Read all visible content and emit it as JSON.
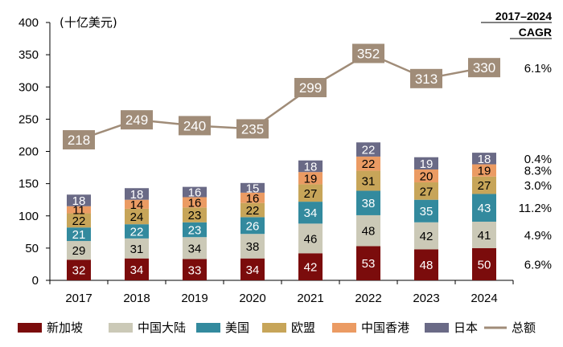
{
  "chart_data": {
    "type": "bar",
    "stacked": true,
    "unit_label": "(十亿美元)",
    "categories": [
      "2017",
      "2018",
      "2019",
      "2020",
      "2021",
      "2022",
      "2023",
      "2024"
    ],
    "ylim": [
      0,
      400
    ],
    "yticks": [
      "0",
      "50",
      "100",
      "150",
      "200",
      "250",
      "300",
      "350",
      "400"
    ],
    "series": [
      {
        "name": "新加坡",
        "color": "#7b0c0c",
        "text_color": "#ffffff",
        "values": [
          32,
          34,
          33,
          34,
          42,
          53,
          48,
          50
        ],
        "cagr": "6.9%"
      },
      {
        "name": "中国大陆",
        "color": "#cbc9b7",
        "text_color": "#000000",
        "values": [
          29,
          31,
          34,
          38,
          46,
          48,
          42,
          41
        ],
        "cagr": "4.9%"
      },
      {
        "name": "美国",
        "color": "#338a9e",
        "text_color": "#ffffff",
        "values": [
          21,
          22,
          23,
          26,
          34,
          38,
          35,
          43
        ],
        "cagr": "11.2%"
      },
      {
        "name": "欧盟",
        "color": "#c7a559",
        "text_color": "#000000",
        "values": [
          22,
          24,
          23,
          22,
          27,
          31,
          27,
          27
        ],
        "cagr": "3.0%"
      },
      {
        "name": "中国香港",
        "color": "#eb9b63",
        "text_color": "#000000",
        "values": [
          11,
          14,
          16,
          16,
          19,
          22,
          20,
          19
        ],
        "cagr": "8.3%"
      },
      {
        "name": "日本",
        "color": "#6a6a86",
        "text_color": "#ffffff",
        "values": [
          18,
          18,
          16,
          15,
          18,
          22,
          19,
          18
        ],
        "cagr": "0.4%"
      }
    ],
    "total": {
      "name": "总额",
      "color": "#a08c78",
      "values": [
        218,
        249,
        240,
        235,
        299,
        352,
        313,
        330
      ],
      "cagr": "6.1%"
    },
    "cagr_header": [
      "2017–2024",
      "CAGR"
    ],
    "legend": "bottom",
    "grid": false
  }
}
